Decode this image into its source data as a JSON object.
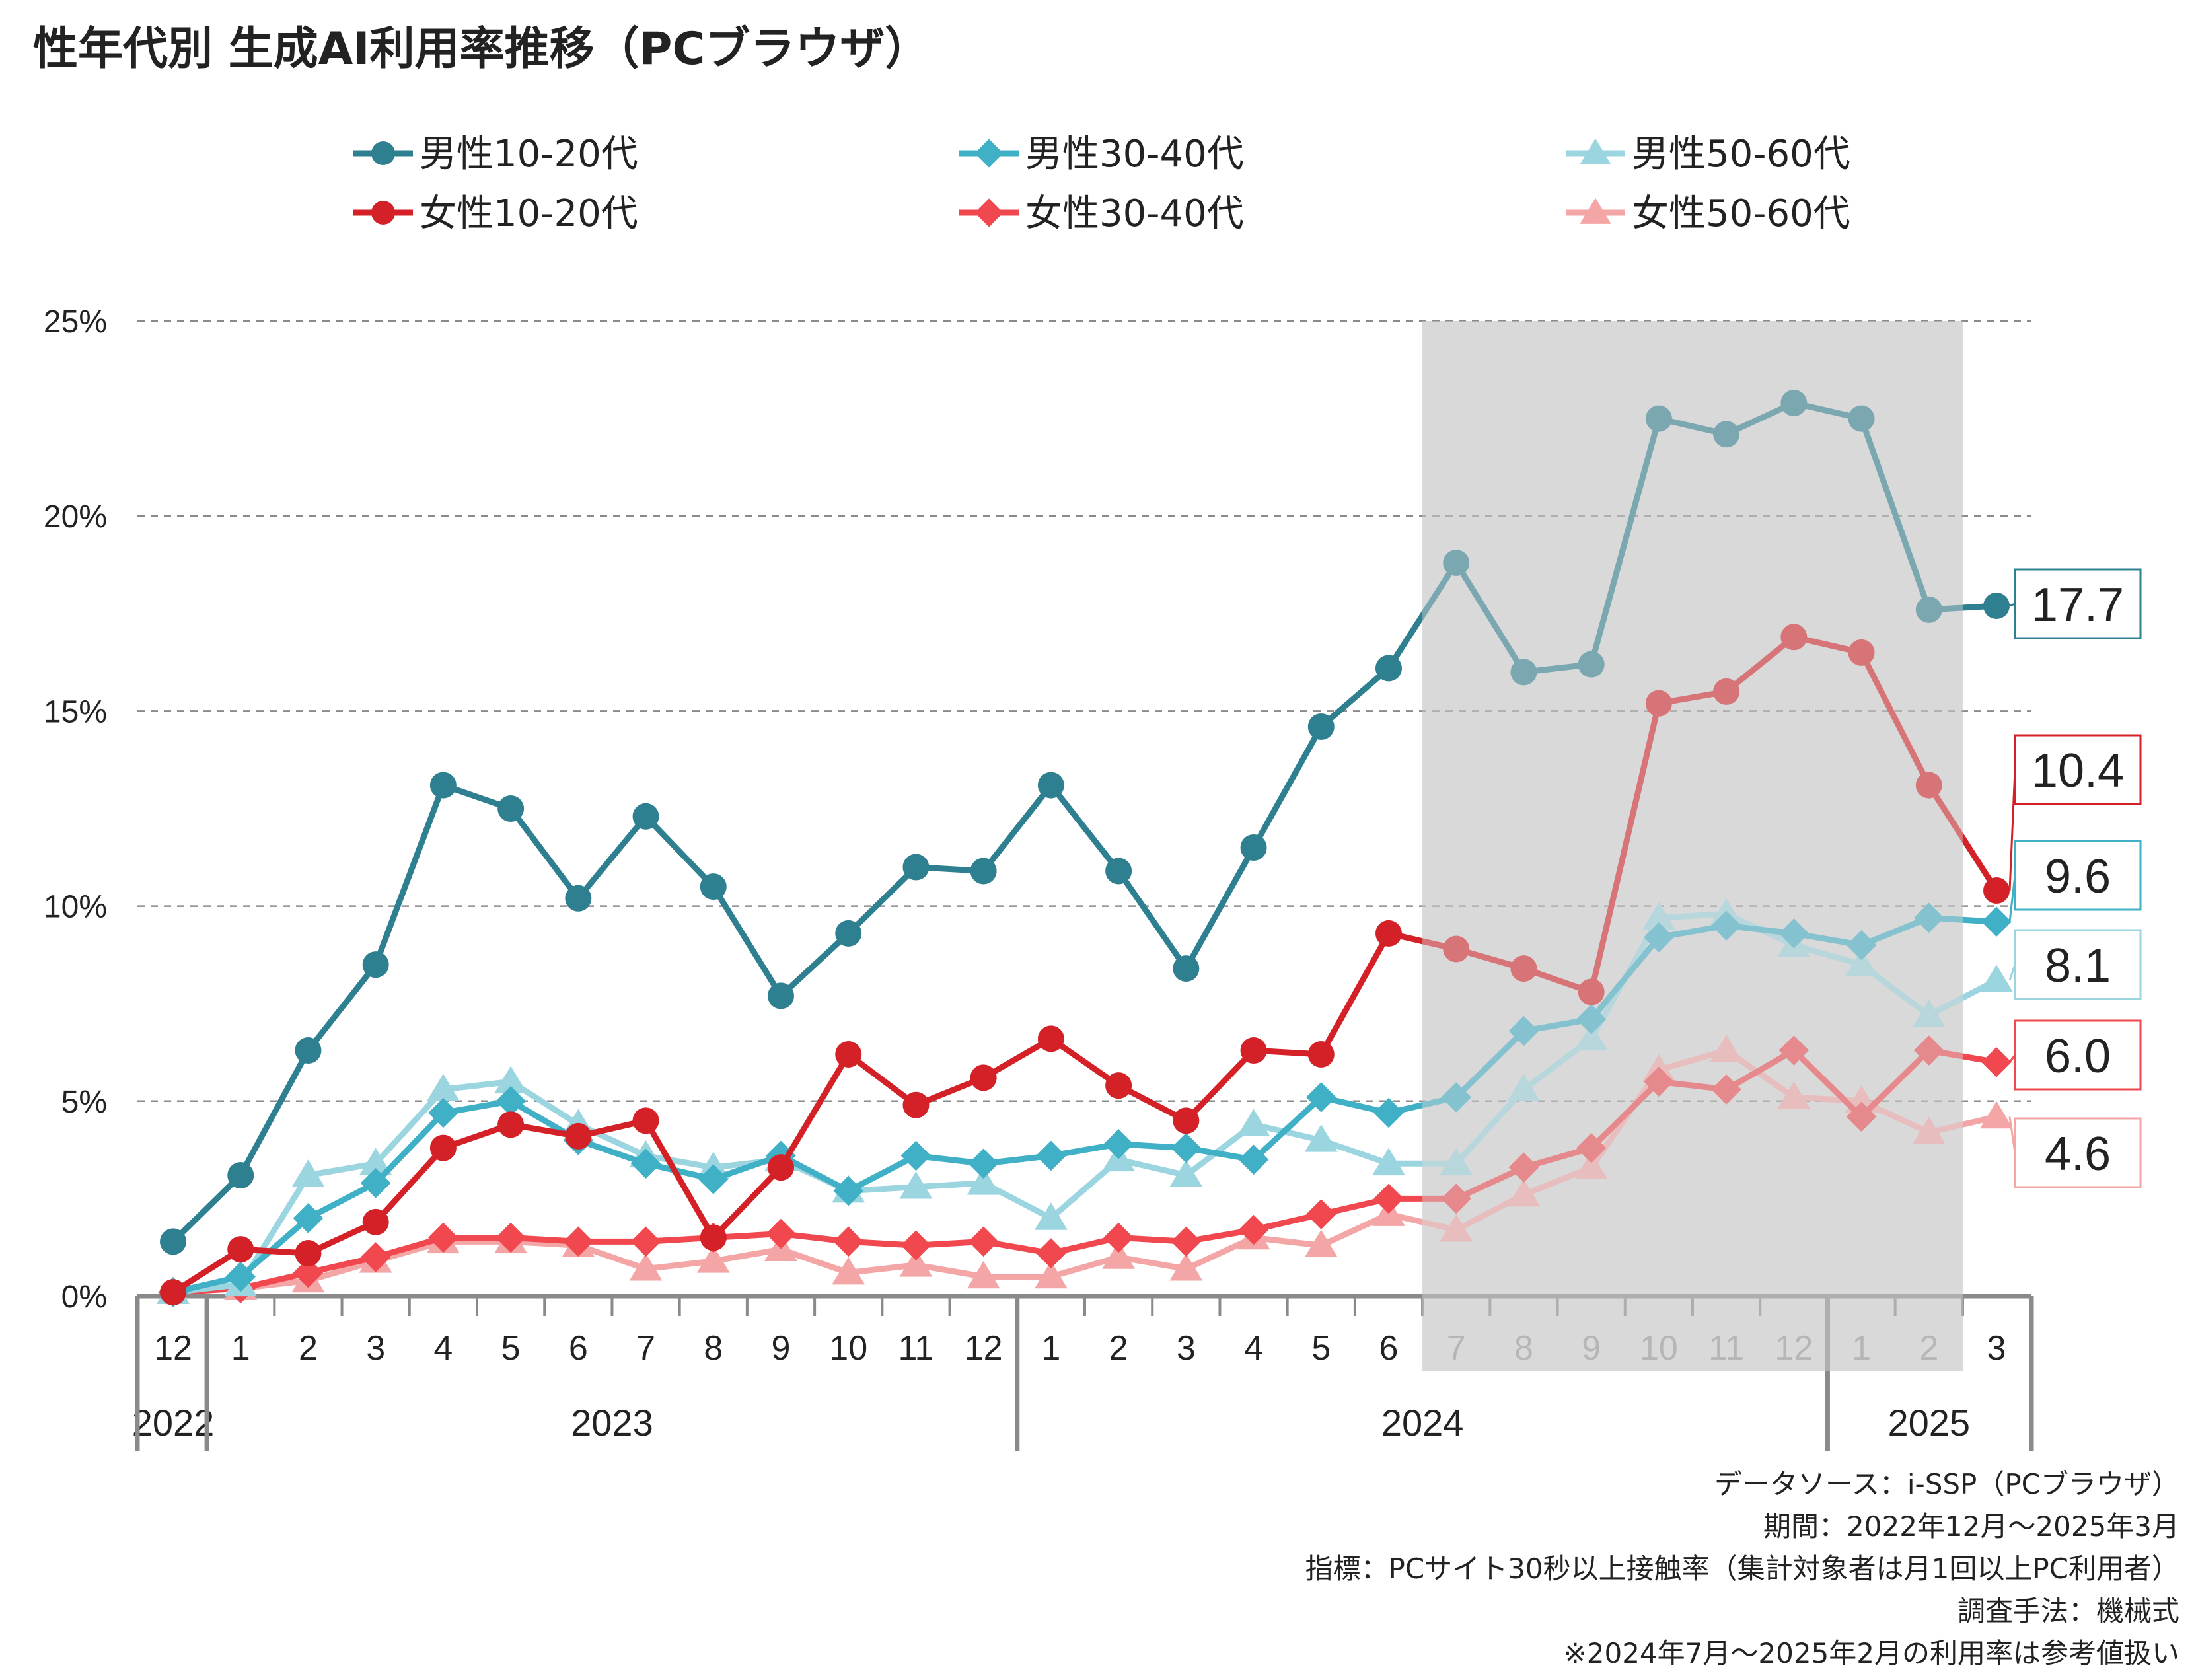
{
  "title": "性年代別 生成AI利用率推移（PCブラウザ）",
  "notes": [
    "データソース：i-SSP（PCブラウザ）",
    "期間：2022年12月～2025年3月",
    "指標：PCサイト30秒以上接触率（集計対象者は月1回以上PC利用者）",
    "調査手法：機械式",
    "※2024年7月～2025年2月の利用率は参考値扱い"
  ],
  "chart_data": {
    "type": "line",
    "title": "性年代別 生成AI利用率推移（PCブラウザ）",
    "xlabel": "",
    "ylabel": "",
    "ylim": [
      0,
      25
    ],
    "yticks": [
      "0%",
      "5%",
      "10%",
      "15%",
      "20%",
      "25%"
    ],
    "grid": "horizontal dashed",
    "legend_position": "top",
    "categories": [
      "12",
      "1",
      "2",
      "3",
      "4",
      "5",
      "6",
      "7",
      "8",
      "9",
      "10",
      "11",
      "12",
      "1",
      "2",
      "3",
      "4",
      "5",
      "6",
      "7",
      "8",
      "9",
      "10",
      "11",
      "12",
      "1",
      "2",
      "3"
    ],
    "years": [
      {
        "label": "2022",
        "from": 0,
        "to": 0
      },
      {
        "label": "2023",
        "from": 1,
        "to": 12
      },
      {
        "label": "2024",
        "from": 13,
        "to": 24
      },
      {
        "label": "2025",
        "from": 25,
        "to": 27
      }
    ],
    "reference_period": {
      "from": 19,
      "to": 26,
      "color": "#d9d9d9"
    },
    "series": [
      {
        "name": "男性10-20代",
        "color": "#2e7f8f",
        "marker": "circle",
        "values": [
          1.4,
          3.1,
          6.3,
          8.5,
          13.1,
          12.5,
          10.2,
          12.3,
          10.5,
          7.7,
          9.3,
          11.0,
          10.9,
          13.1,
          10.9,
          8.4,
          11.5,
          14.6,
          16.1,
          18.8,
          16.0,
          16.2,
          22.5,
          22.1,
          22.9,
          22.5,
          17.6,
          17.7
        ],
        "end_label": "17.7"
      },
      {
        "name": "男性30-40代",
        "color": "#3fb0c6",
        "marker": "diamond",
        "values": [
          0.1,
          0.5,
          2.0,
          2.9,
          4.7,
          5.0,
          4.0,
          3.4,
          3.0,
          3.6,
          2.7,
          3.6,
          3.4,
          3.6,
          3.9,
          3.8,
          3.5,
          5.1,
          4.7,
          5.1,
          6.8,
          7.1,
          9.2,
          9.5,
          9.3,
          9.0,
          9.7,
          9.6
        ],
        "end_label": "9.6"
      },
      {
        "name": "男性50-60代",
        "color": "#9bd5e0",
        "marker": "triangle",
        "values": [
          0.1,
          0.3,
          3.1,
          3.4,
          5.3,
          5.5,
          4.4,
          3.6,
          3.3,
          3.5,
          2.7,
          2.8,
          2.9,
          2.0,
          3.5,
          3.1,
          4.4,
          4.0,
          3.4,
          3.4,
          5.3,
          6.6,
          9.7,
          9.8,
          9.0,
          8.5,
          7.2,
          8.1
        ],
        "end_label": "8.1"
      },
      {
        "name": "女性10-20代",
        "color": "#d42127",
        "marker": "circle",
        "values": [
          0.1,
          1.2,
          1.1,
          1.9,
          3.8,
          4.4,
          4.1,
          4.5,
          1.5,
          3.3,
          6.2,
          4.9,
          5.6,
          6.6,
          5.4,
          4.5,
          6.3,
          6.2,
          9.3,
          8.9,
          8.4,
          7.8,
          15.2,
          15.5,
          16.9,
          16.5,
          13.1,
          10.4
        ],
        "end_label": "10.4"
      },
      {
        "name": "女性30-40代",
        "color": "#f0484e",
        "marker": "diamond",
        "values": [
          0.1,
          0.2,
          0.6,
          1.0,
          1.5,
          1.5,
          1.4,
          1.4,
          1.5,
          1.6,
          1.4,
          1.3,
          1.4,
          1.1,
          1.5,
          1.4,
          1.7,
          2.1,
          2.5,
          2.5,
          3.3,
          3.8,
          5.5,
          5.3,
          6.3,
          4.6,
          6.3,
          6.0
        ],
        "end_label": "6.0"
      },
      {
        "name": "女性50-60代",
        "color": "#f4a6a6",
        "marker": "triangle",
        "values": [
          0.1,
          0.2,
          0.4,
          0.9,
          1.4,
          1.4,
          1.3,
          0.7,
          0.9,
          1.2,
          0.6,
          0.8,
          0.5,
          0.5,
          1.0,
          0.7,
          1.5,
          1.3,
          2.1,
          1.7,
          2.6,
          3.3,
          5.8,
          6.3,
          5.1,
          5.0,
          4.2,
          4.6
        ],
        "end_label": "4.6"
      }
    ]
  }
}
